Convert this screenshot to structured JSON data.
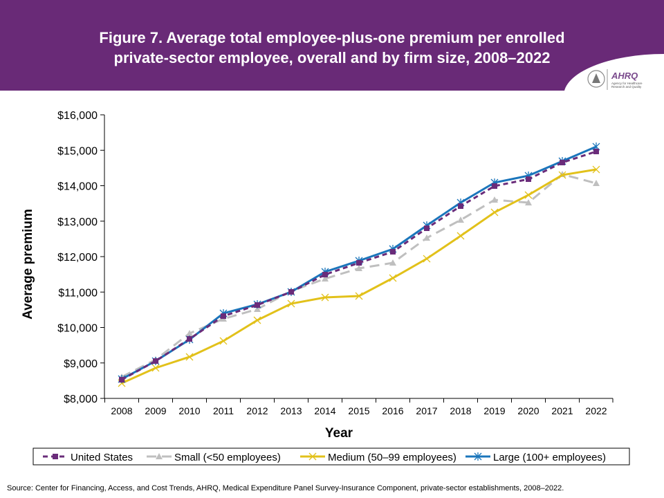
{
  "header": {
    "title_line1": "Figure 7. Average total employee-plus-one premium per enrolled",
    "title_line2": "private-sector employee, overall and by firm size, 2008–2022",
    "logo_text": "AHRQ",
    "logo_subtext": "Agency for Healthcare Research and Quality"
  },
  "source": "Source: Center for Financing, Access, and Cost Trends, AHRQ, Medical Expenditure Panel Survey-Insurance Component, private-sector establishments, 2008–2022.",
  "chart_data": {
    "type": "line",
    "title": "Figure 7. Average total employee-plus-one premium per enrolled private-sector employee, overall and by firm size, 2008–2022",
    "xlabel": "Year",
    "ylabel": "Average premium",
    "ylim": [
      8000,
      16000
    ],
    "yticks": [
      "$8,000",
      "$9,000",
      "$10,000",
      "$11,000",
      "$12,000",
      "$13,000",
      "$14,000",
      "$15,000",
      "$16,000"
    ],
    "x": [
      "2008",
      "2009",
      "2010",
      "2011",
      "2012",
      "2013",
      "2014",
      "2015",
      "2016",
      "2017",
      "2018",
      "2019",
      "2020",
      "2021",
      "2022"
    ],
    "legend": "bottom",
    "grid": false,
    "series": [
      {
        "name": "United States",
        "color": "#6a2c7a",
        "dash": "dashed",
        "marker": "square",
        "values": [
          8527,
          9054,
          9678,
          10322,
          10634,
          11005,
          11493,
          11824,
          12137,
          12800,
          13424,
          13990,
          14185,
          14654,
          14966
        ]
      },
      {
        "name": "Small (<50 employees)",
        "color": "#bfbfbf",
        "dash": "long-dash",
        "marker": "triangle",
        "values": [
          8605,
          9093,
          9834,
          10244,
          10517,
          11025,
          11376,
          11668,
          11824,
          12527,
          13034,
          13600,
          13522,
          14322,
          14068
        ]
      },
      {
        "name": "Medium (50–99 employees)",
        "color": "#e2c11a",
        "dash": "solid",
        "marker": "x",
        "values": [
          8429,
          8859,
          9171,
          9620,
          10205,
          10673,
          10849,
          10888,
          11395,
          11941,
          12585,
          13249,
          13737,
          14302,
          14458
        ]
      },
      {
        "name": "Large (100+ employees)",
        "color": "#1a75bb",
        "dash": "solid",
        "marker": "star",
        "values": [
          8546,
          9054,
          9659,
          10400,
          10654,
          11005,
          11571,
          11883,
          12215,
          12878,
          13522,
          14088,
          14283,
          14693,
          15102
        ]
      }
    ]
  }
}
